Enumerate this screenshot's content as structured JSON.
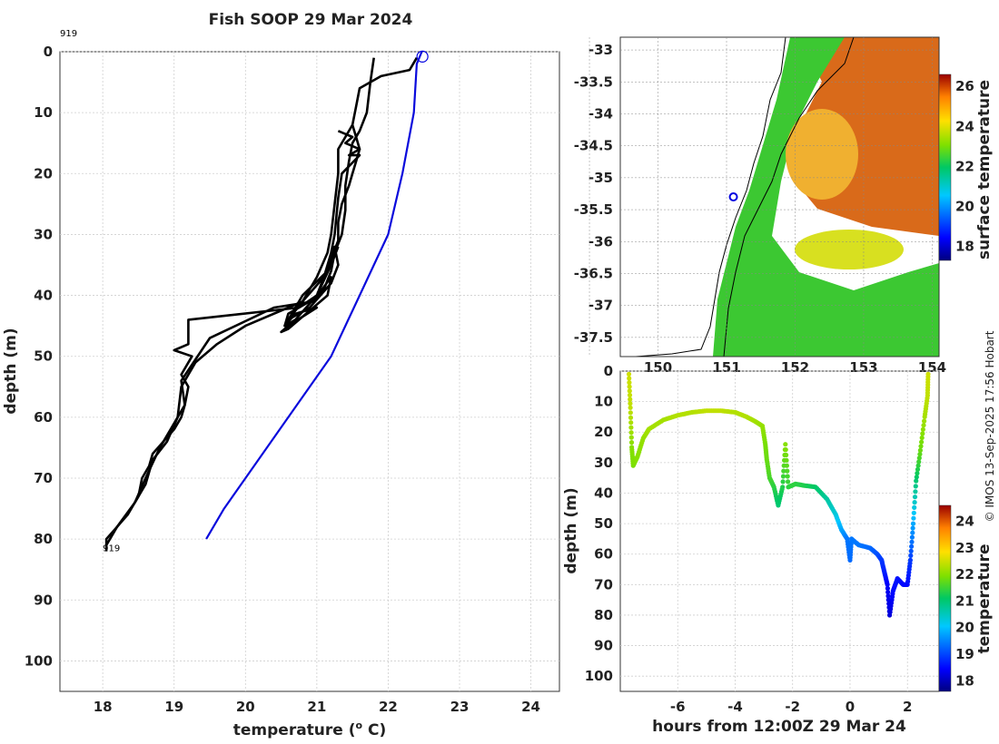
{
  "chart_data": [
    {
      "type": "line",
      "title": "Fish SOOP 29 Mar 2024",
      "xlabel": "temperature (",
      "xlabel_sup": "o",
      "xlabel_end": " C)",
      "ylabel": "depth (m)",
      "xlim": [
        17.4,
        24.4
      ],
      "ylim": [
        105,
        0
      ],
      "xticks": [
        "18",
        "19",
        "20",
        "21",
        "22",
        "23",
        "24"
      ],
      "yticks": [
        "0",
        "10",
        "20",
        "30",
        "40",
        "50",
        "60",
        "70",
        "80",
        "90",
        "100"
      ],
      "annotations": [
        {
          "text": "919",
          "x": 17.4,
          "y": -2.5
        },
        {
          "text": "919",
          "x": 18.0,
          "y": 82
        }
      ],
      "start_marker": {
        "x": 22.48,
        "y": 0.8
      },
      "series": [
        {
          "name": "climatology",
          "color": "#0a0adc",
          "points": [
            [
              22.47,
              0
            ],
            [
              22.4,
              2
            ],
            [
              22.36,
              10
            ],
            [
              22.2,
              20
            ],
            [
              22.0,
              30
            ],
            [
              21.6,
              40
            ],
            [
              21.2,
              50
            ],
            [
              20.6,
              60
            ],
            [
              20.0,
              70
            ],
            [
              19.7,
              75
            ],
            [
              19.45,
              80
            ]
          ]
        },
        {
          "name": "profile",
          "color": "#000000",
          "points": [
            [
              22.4,
              1
            ],
            [
              22.3,
              3
            ],
            [
              21.9,
              4
            ],
            [
              21.6,
              6
            ],
            [
              21.55,
              9
            ],
            [
              21.5,
              12
            ],
            [
              21.55,
              14
            ],
            [
              21.6,
              16
            ],
            [
              21.55,
              18
            ],
            [
              21.5,
              20
            ],
            [
              21.45,
              22
            ],
            [
              21.35,
              25
            ],
            [
              21.3,
              28
            ],
            [
              21.3,
              31
            ],
            [
              21.2,
              34
            ],
            [
              21.1,
              37
            ],
            [
              21.0,
              40
            ],
            [
              20.75,
              42
            ],
            [
              19.2,
              44
            ],
            [
              19.2,
              48
            ],
            [
              19.0,
              49
            ],
            [
              19.25,
              50
            ],
            [
              19.1,
              53
            ],
            [
              19.2,
              55
            ],
            [
              19.15,
              58
            ],
            [
              19.1,
              60
            ],
            [
              19.0,
              62
            ],
            [
              18.85,
              64
            ],
            [
              18.7,
              66
            ],
            [
              18.65,
              68
            ],
            [
              18.55,
              70
            ],
            [
              18.5,
              73
            ],
            [
              18.35,
              76
            ],
            [
              18.2,
              78
            ],
            [
              18.05,
              80
            ],
            [
              18.05,
              82
            ]
          ]
        },
        {
          "name": "profile",
          "color": "#000000",
          "points": [
            [
              21.8,
              1
            ],
            [
              21.75,
              5
            ],
            [
              21.7,
              10
            ],
            [
              21.6,
              13
            ],
            [
              21.5,
              15
            ],
            [
              21.45,
              18
            ],
            [
              21.4,
              22
            ],
            [
              21.4,
              26
            ],
            [
              21.35,
              30
            ],
            [
              21.25,
              33
            ],
            [
              21.2,
              36
            ],
            [
              21.1,
              39
            ],
            [
              20.9,
              41
            ],
            [
              20.6,
              43
            ],
            [
              20.55,
              45
            ],
            [
              20.7,
              43
            ],
            [
              21.0,
              42
            ],
            [
              20.6,
              45
            ],
            [
              20.5,
              46
            ],
            [
              20.6,
              45.5
            ],
            [
              21.15,
              40
            ],
            [
              21.2,
              37
            ],
            [
              20.95,
              41
            ],
            [
              20.4,
              42
            ],
            [
              19.5,
              47
            ],
            [
              19.1,
              54
            ],
            [
              19.15,
              58
            ],
            [
              19.05,
              60
            ],
            [
              18.95,
              62
            ],
            [
              18.8,
              65
            ],
            [
              18.6,
              70
            ],
            [
              18.45,
              74
            ],
            [
              18.2,
              78
            ],
            [
              18.05,
              81
            ]
          ]
        },
        {
          "name": "profile",
          "color": "#000000",
          "points": [
            [
              21.3,
              13
            ],
            [
              21.5,
              14
            ],
            [
              21.4,
              15
            ],
            [
              21.6,
              16
            ],
            [
              21.45,
              17
            ],
            [
              21.6,
              17
            ],
            [
              21.35,
              20
            ],
            [
              21.3,
              24
            ],
            [
              21.25,
              30
            ],
            [
              21.2,
              33
            ],
            [
              21.1,
              37
            ],
            [
              20.8,
              41
            ],
            [
              20.6,
              44
            ],
            [
              20.9,
              42
            ],
            [
              21.2,
              38
            ],
            [
              21.3,
              35
            ],
            [
              21.25,
              32
            ],
            [
              21.15,
              36
            ],
            [
              20.8,
              40
            ],
            [
              20.55,
              45
            ],
            [
              20.7,
              44
            ],
            [
              21.0,
              40
            ],
            [
              21.2,
              35
            ],
            [
              21.3,
              32
            ]
          ]
        },
        {
          "name": "profile",
          "color": "#000000",
          "points": [
            [
              21.5,
              12
            ],
            [
              21.4,
              14
            ],
            [
              21.3,
              16
            ],
            [
              21.3,
              20
            ],
            [
              21.25,
              25
            ],
            [
              21.2,
              30
            ],
            [
              21.15,
              33
            ],
            [
              21.0,
              37
            ],
            [
              20.8,
              41
            ],
            [
              20.6,
              42
            ],
            [
              20.0,
              45
            ],
            [
              19.6,
              48
            ],
            [
              19.3,
              51
            ],
            [
              19.1,
              55
            ],
            [
              19.05,
              60
            ],
            [
              18.9,
              64
            ],
            [
              18.7,
              67
            ],
            [
              18.6,
              71
            ],
            [
              18.45,
              74
            ]
          ]
        }
      ]
    },
    {
      "type": "heatmap",
      "title": "",
      "colorbar_label": "surface temperature",
      "colorbar_ticks": [
        "26",
        "24",
        "22",
        "20",
        "18"
      ],
      "colorbar_range": [
        17.3,
        26.6
      ],
      "xlim": [
        149.45,
        154.1
      ],
      "ylim": [
        -37.8,
        -32.8
      ],
      "xticks": [
        "149",
        "150",
        "151",
        "152",
        "153",
        "154"
      ],
      "yticks": [
        "-33",
        "-33.5",
        "-34",
        "-34.5",
        "-35",
        "-35.5",
        "-36",
        "-36.5",
        "-37",
        "-37.5"
      ],
      "marker": {
        "lon": 151.1,
        "lat": -35.3
      }
    },
    {
      "type": "scatter",
      "title": "",
      "xlabel": "hours from 12:00Z 29 Mar 24",
      "ylabel": "depth (m)",
      "colorbar_label": "temperature",
      "colorbar_ticks": [
        "24",
        "23",
        "22",
        "21",
        "20",
        "19",
        "18"
      ],
      "colorbar_range": [
        17.6,
        24.6
      ],
      "xlim": [
        -8.0,
        3.1
      ],
      "ylim": [
        105,
        0
      ],
      "xticks": [
        "-6",
        "-4",
        "-2",
        "0",
        "2"
      ],
      "yticks": [
        "0",
        "10",
        "20",
        "30",
        "40",
        "50",
        "60",
        "70",
        "80",
        "90",
        "100"
      ],
      "points": [
        [
          -7.7,
          1,
          22.5
        ],
        [
          -7.65,
          12,
          22.4
        ],
        [
          -7.6,
          25,
          22.0
        ],
        [
          -7.55,
          31,
          21.9
        ],
        [
          -7.4,
          28,
          22.0
        ],
        [
          -7.2,
          22,
          22.1
        ],
        [
          -7.0,
          19,
          22.2
        ],
        [
          -6.5,
          16,
          22.2
        ],
        [
          -6.0,
          14.5,
          22.3
        ],
        [
          -5.5,
          13.5,
          22.3
        ],
        [
          -5.0,
          13,
          22.4
        ],
        [
          -4.5,
          13,
          22.4
        ],
        [
          -4.0,
          13.5,
          22.3
        ],
        [
          -3.6,
          15,
          22.3
        ],
        [
          -3.3,
          16.5,
          22.2
        ],
        [
          -3.05,
          18,
          22.1
        ],
        [
          -2.95,
          24,
          21.9
        ],
        [
          -2.9,
          29,
          21.8
        ],
        [
          -2.8,
          35,
          21.6
        ],
        [
          -2.65,
          38,
          21.4
        ],
        [
          -2.5,
          44,
          21.0
        ],
        [
          -2.35,
          38,
          21.3
        ],
        [
          -2.25,
          24,
          22.0
        ],
        [
          -2.15,
          38,
          21.4
        ],
        [
          -1.9,
          37,
          21.4
        ],
        [
          -1.6,
          37.5,
          21.3
        ],
        [
          -1.2,
          38,
          21.1
        ],
        [
          -0.8,
          42,
          20.7
        ],
        [
          -0.5,
          47,
          20.3
        ],
        [
          -0.3,
          52,
          19.8
        ],
        [
          -0.1,
          55,
          19.4
        ],
        [
          0,
          62,
          19.3
        ],
        [
          0.05,
          55,
          19.4
        ],
        [
          0.3,
          57,
          19.4
        ],
        [
          0.7,
          58,
          19.3
        ],
        [
          0.95,
          60,
          19.1
        ],
        [
          1.1,
          62,
          18.9
        ],
        [
          1.2,
          66,
          18.7
        ],
        [
          1.3,
          70,
          18.4
        ],
        [
          1.38,
          80,
          18.2
        ],
        [
          1.5,
          72,
          18.5
        ],
        [
          1.65,
          68,
          18.6
        ],
        [
          1.85,
          70,
          18.5
        ],
        [
          2.0,
          70,
          18.5
        ],
        [
          2.1,
          62,
          18.9
        ],
        [
          2.2,
          50,
          19.8
        ],
        [
          2.3,
          36,
          21.0
        ],
        [
          2.45,
          26,
          21.8
        ],
        [
          2.6,
          15,
          22.2
        ],
        [
          2.7,
          8,
          22.4
        ],
        [
          2.72,
          1,
          22.5
        ]
      ]
    }
  ],
  "credit": "© IMOS 13-Sep-2025 17:56 Hobart"
}
